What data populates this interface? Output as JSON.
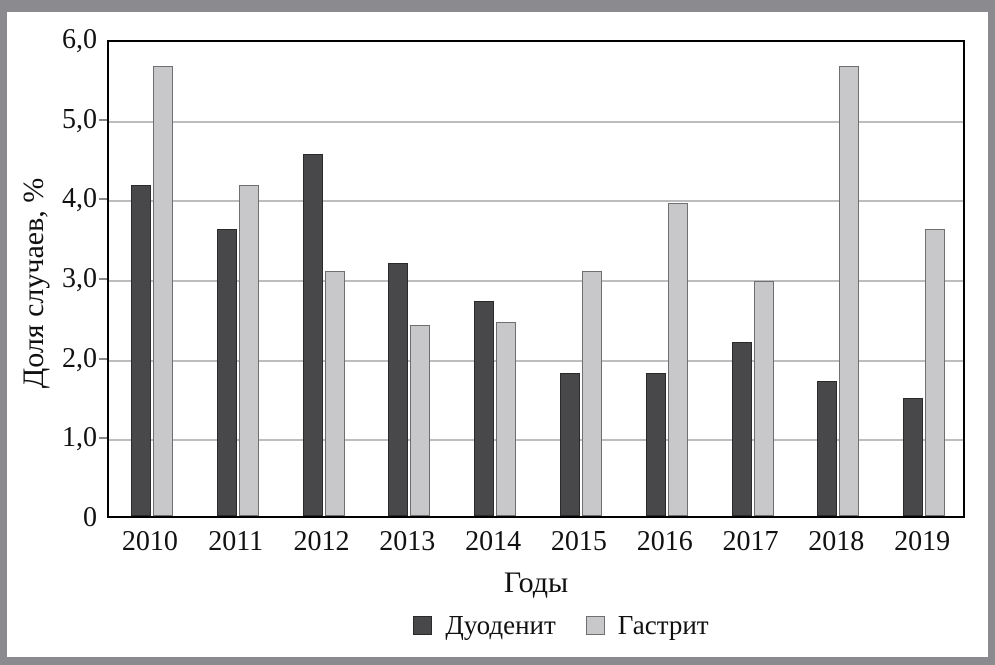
{
  "chart_data": {
    "type": "bar",
    "title": "",
    "categories": [
      "2010",
      "2011",
      "2012",
      "2013",
      "2014",
      "2015",
      "2016",
      "2017",
      "2018",
      "2019"
    ],
    "series": [
      {
        "name": "Дуоденит",
        "color": "#48484b",
        "values": [
          4.15,
          3.6,
          4.55,
          3.17,
          2.7,
          1.8,
          1.8,
          2.18,
          1.7,
          1.48
        ]
      },
      {
        "name": "Гастрит",
        "color": "#c8c8ca",
        "values": [
          5.65,
          4.15,
          3.07,
          2.4,
          2.43,
          3.08,
          3.93,
          2.95,
          5.65,
          3.6
        ]
      }
    ],
    "xlabel": "Годы",
    "ylabel": "Доля случаев, %",
    "ylim": [
      0,
      6
    ],
    "ytick_step": 1,
    "ytick_labels": [
      "0",
      "1,0",
      "2,0",
      "3,0",
      "4,0",
      "5,0",
      "6,0"
    ],
    "grid": "horizontal",
    "legend_position": "bottom",
    "colors": {
      "frame_border": "#8b8b8f",
      "plot_border": "#000000",
      "gridline": "#bdbdbd",
      "series_dark": "#48484b",
      "series_light": "#c8c8ca"
    }
  }
}
